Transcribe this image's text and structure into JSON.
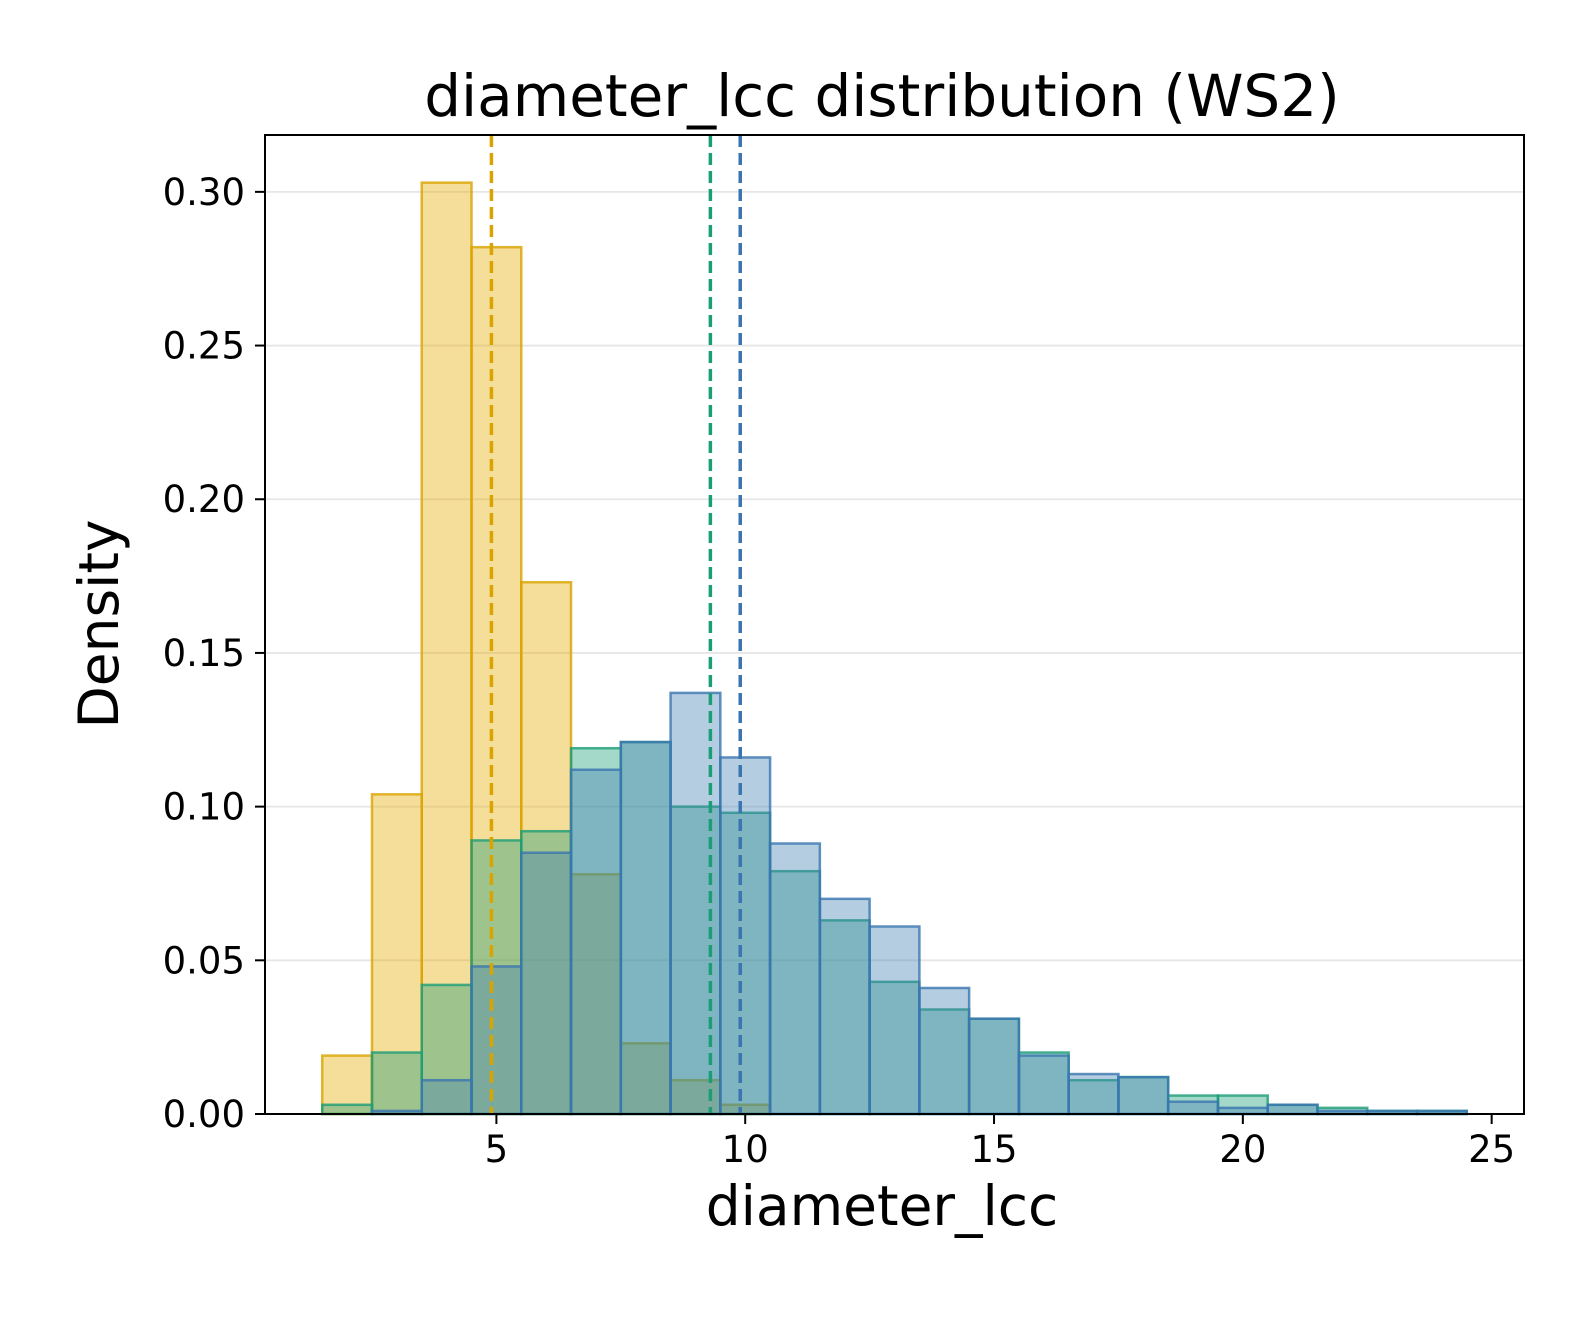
{
  "chart_data": {
    "type": "histogram",
    "title": "diameter_lcc distribution (WS2)",
    "xlabel": "diameter_lcc",
    "ylabel": "Density",
    "xlim": [
      0.35,
      25.65
    ],
    "ylim": [
      0,
      0.3185
    ],
    "xticks": [
      5,
      10,
      15,
      20,
      25
    ],
    "yticks": [
      0.0,
      0.05,
      0.1,
      0.15,
      0.2,
      0.25,
      0.3
    ],
    "ytick_labels": [
      "0.00",
      "0.05",
      "0.10",
      "0.15",
      "0.20",
      "0.25",
      "0.30"
    ],
    "grid": "y",
    "bin_edges": [
      1.5,
      2.5,
      3.5,
      4.5,
      5.5,
      6.5,
      7.5,
      8.5,
      9.5,
      10.5,
      11.5,
      12.5,
      13.5,
      14.5,
      15.5,
      16.5,
      17.5,
      18.5,
      19.5,
      20.5,
      21.5,
      22.5,
      23.5,
      24.5
    ],
    "series": [
      {
        "name": "yellow",
        "fill": "#e6ab02",
        "edge": "#d9a400",
        "values": [
          0.019,
          0.104,
          0.303,
          0.282,
          0.173,
          0.078,
          0.023,
          0.011,
          0.003,
          0,
          0,
          0,
          0,
          0,
          0,
          0,
          0,
          0,
          0,
          0,
          0,
          0,
          0
        ],
        "mean": 4.9
      },
      {
        "name": "green",
        "fill": "#1b9e77",
        "edge": "#1b9e77",
        "values": [
          0.003,
          0.02,
          0.042,
          0.089,
          0.092,
          0.119,
          0.121,
          0.1,
          0.098,
          0.079,
          0.063,
          0.043,
          0.034,
          0.031,
          0.02,
          0.011,
          0.012,
          0.006,
          0.006,
          0.003,
          0.002,
          0.001,
          0.001
        ],
        "mean": 9.3
      },
      {
        "name": "blue",
        "fill": "#4682b4",
        "edge": "#3a75b0",
        "values": [
          0,
          0.001,
          0.011,
          0.048,
          0.085,
          0.112,
          0.121,
          0.137,
          0.116,
          0.088,
          0.07,
          0.061,
          0.041,
          0.031,
          0.019,
          0.013,
          0.012,
          0.004,
          0.002,
          0.003,
          0.001,
          0.001,
          0.001
        ],
        "mean": 9.9
      }
    ]
  }
}
